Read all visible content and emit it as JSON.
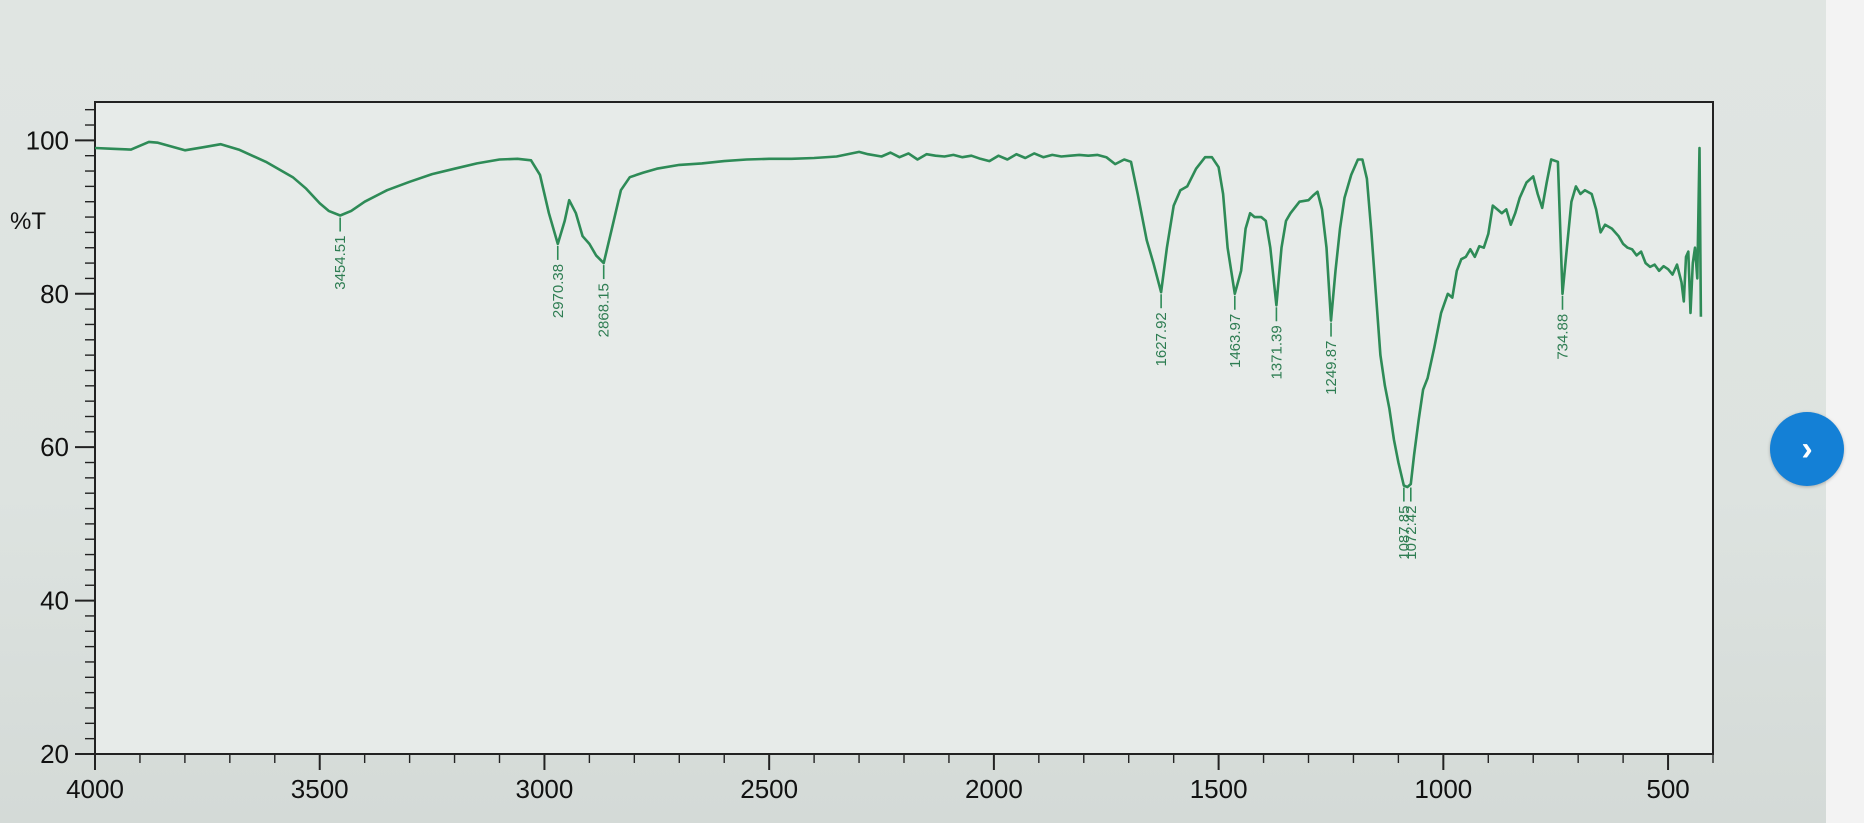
{
  "chart_data": {
    "type": "line",
    "title": "",
    "xlabel": "",
    "ylabel": "%T",
    "xlim": [
      4000,
      400
    ],
    "ylim": [
      20,
      105
    ],
    "x_ticks": [
      4000,
      3500,
      3000,
      2500,
      2000,
      1500,
      1000,
      500
    ],
    "y_ticks": [
      20,
      40,
      60,
      80,
      100
    ],
    "grid": false,
    "line_color": "#2e8b57",
    "series": [
      {
        "points": [
          [
            4000,
            99
          ],
          [
            3960,
            98.9
          ],
          [
            3920,
            98.8
          ],
          [
            3880,
            99.8
          ],
          [
            3860,
            99.7
          ],
          [
            3800,
            98.7
          ],
          [
            3760,
            99.1
          ],
          [
            3720,
            99.5
          ],
          [
            3680,
            98.8
          ],
          [
            3620,
            97.2
          ],
          [
            3560,
            95.2
          ],
          [
            3530,
            93.7
          ],
          [
            3500,
            91.8
          ],
          [
            3480,
            90.8
          ],
          [
            3454.51,
            90.2
          ],
          [
            3430,
            90.8
          ],
          [
            3400,
            92
          ],
          [
            3350,
            93.5
          ],
          [
            3300,
            94.6
          ],
          [
            3250,
            95.6
          ],
          [
            3200,
            96.3
          ],
          [
            3150,
            97.0
          ],
          [
            3100,
            97.5
          ],
          [
            3060,
            97.6
          ],
          [
            3030,
            97.4
          ],
          [
            3010,
            95.5
          ],
          [
            2990,
            90.5
          ],
          [
            2970.38,
            86.5
          ],
          [
            2955,
            89.5
          ],
          [
            2945,
            92.2
          ],
          [
            2930,
            90.5
          ],
          [
            2915,
            87.5
          ],
          [
            2900,
            86.5
          ],
          [
            2885,
            85
          ],
          [
            2868.15,
            84.0
          ],
          [
            2850,
            88.5
          ],
          [
            2830,
            93.5
          ],
          [
            2810,
            95.2
          ],
          [
            2780,
            95.8
          ],
          [
            2750,
            96.3
          ],
          [
            2700,
            96.8
          ],
          [
            2650,
            97.0
          ],
          [
            2600,
            97.3
          ],
          [
            2550,
            97.5
          ],
          [
            2500,
            97.6
          ],
          [
            2450,
            97.6
          ],
          [
            2400,
            97.7
          ],
          [
            2350,
            97.9
          ],
          [
            2300,
            98.5
          ],
          [
            2280,
            98.2
          ],
          [
            2250,
            97.9
          ],
          [
            2230,
            98.4
          ],
          [
            2210,
            97.8
          ],
          [
            2190,
            98.3
          ],
          [
            2170,
            97.5
          ],
          [
            2150,
            98.2
          ],
          [
            2130,
            98.0
          ],
          [
            2110,
            97.9
          ],
          [
            2090,
            98.1
          ],
          [
            2070,
            97.8
          ],
          [
            2050,
            98.0
          ],
          [
            2030,
            97.6
          ],
          [
            2010,
            97.3
          ],
          [
            1990,
            98.0
          ],
          [
            1970,
            97.5
          ],
          [
            1950,
            98.2
          ],
          [
            1930,
            97.7
          ],
          [
            1910,
            98.3
          ],
          [
            1890,
            97.8
          ],
          [
            1870,
            98.1
          ],
          [
            1850,
            97.9
          ],
          [
            1830,
            98.0
          ],
          [
            1810,
            98.1
          ],
          [
            1790,
            98.0
          ],
          [
            1770,
            98.1
          ],
          [
            1750,
            97.8
          ],
          [
            1730,
            96.9
          ],
          [
            1710,
            97.5
          ],
          [
            1695,
            97.2
          ],
          [
            1680,
            93
          ],
          [
            1660,
            87
          ],
          [
            1645,
            84
          ],
          [
            1627.92,
            80.2
          ],
          [
            1615,
            86
          ],
          [
            1600,
            91.5
          ],
          [
            1585,
            93.5
          ],
          [
            1570,
            94.0
          ],
          [
            1550,
            96.3
          ],
          [
            1530,
            97.8
          ],
          [
            1515,
            97.8
          ],
          [
            1500,
            96.5
          ],
          [
            1490,
            93
          ],
          [
            1480,
            86
          ],
          [
            1463.97,
            80.0
          ],
          [
            1450,
            83
          ],
          [
            1440,
            88.5
          ],
          [
            1430,
            90.5
          ],
          [
            1420,
            90.0
          ],
          [
            1405,
            90.0
          ],
          [
            1395,
            89.5
          ],
          [
            1385,
            86
          ],
          [
            1371.39,
            78.5
          ],
          [
            1360,
            86
          ],
          [
            1350,
            89.5
          ],
          [
            1340,
            90.5
          ],
          [
            1320,
            92.0
          ],
          [
            1300,
            92.2
          ],
          [
            1290,
            92.8
          ],
          [
            1280,
            93.3
          ],
          [
            1270,
            91.0
          ],
          [
            1260,
            86
          ],
          [
            1249.87,
            76.5
          ],
          [
            1240,
            83
          ],
          [
            1230,
            88.5
          ],
          [
            1220,
            92.5
          ],
          [
            1205,
            95.5
          ],
          [
            1190,
            97.5
          ],
          [
            1180,
            97.5
          ],
          [
            1170,
            95
          ],
          [
            1160,
            88
          ],
          [
            1150,
            80
          ],
          [
            1140,
            72
          ],
          [
            1130,
            68
          ],
          [
            1120,
            65
          ],
          [
            1110,
            61
          ],
          [
            1100,
            58
          ],
          [
            1087.85,
            55.0
          ],
          [
            1080,
            54.8
          ],
          [
            1072.42,
            55.2
          ],
          [
            1065,
            59
          ],
          [
            1055,
            63.5
          ],
          [
            1045,
            67.5
          ],
          [
            1035,
            69
          ],
          [
            1020,
            73
          ],
          [
            1005,
            77.5
          ],
          [
            990,
            80.0
          ],
          [
            980,
            79.5
          ],
          [
            970,
            83
          ],
          [
            960,
            84.5
          ],
          [
            950,
            84.8
          ],
          [
            940,
            85.8
          ],
          [
            930,
            84.8
          ],
          [
            920,
            86.2
          ],
          [
            910,
            86.0
          ],
          [
            900,
            87.8
          ],
          [
            890,
            91.5
          ],
          [
            880,
            91.0
          ],
          [
            870,
            90.5
          ],
          [
            860,
            91.0
          ],
          [
            850,
            89.0
          ],
          [
            840,
            90.5
          ],
          [
            830,
            92.5
          ],
          [
            815,
            94.5
          ],
          [
            800,
            95.3
          ],
          [
            790,
            93.0
          ],
          [
            780,
            91.2
          ],
          [
            770,
            94.5
          ],
          [
            760,
            97.5
          ],
          [
            745,
            97.2
          ],
          [
            734.88,
            80.0
          ],
          [
            725,
            86
          ],
          [
            715,
            92.0
          ],
          [
            705,
            94.0
          ],
          [
            695,
            93.0
          ],
          [
            685,
            93.5
          ],
          [
            670,
            93.0
          ],
          [
            660,
            91.0
          ],
          [
            650,
            88.0
          ],
          [
            640,
            89.0
          ],
          [
            625,
            88.5
          ],
          [
            610,
            87.5
          ],
          [
            600,
            86.5
          ],
          [
            590,
            86.0
          ],
          [
            580,
            85.8
          ],
          [
            570,
            85.0
          ],
          [
            560,
            85.5
          ],
          [
            550,
            84.0
          ],
          [
            540,
            83.5
          ],
          [
            530,
            83.8
          ],
          [
            520,
            83.0
          ],
          [
            510,
            83.6
          ],
          [
            500,
            83.2
          ],
          [
            490,
            82.5
          ],
          [
            480,
            83.8
          ],
          [
            470,
            81.5
          ],
          [
            465,
            79.0
          ],
          [
            460,
            84.8
          ],
          [
            455,
            85.5
          ],
          [
            450,
            77.5
          ],
          [
            445,
            84.0
          ],
          [
            440,
            86.0
          ],
          [
            435,
            82.0
          ],
          [
            430,
            99.0
          ],
          [
            427,
            77.0
          ]
        ]
      }
    ],
    "peak_labels": [
      {
        "wavenumber": 3454.51,
        "text": "3454.51",
        "transmittance": 90.2
      },
      {
        "wavenumber": 2970.38,
        "text": "2970.38",
        "transmittance": 86.5
      },
      {
        "wavenumber": 2868.15,
        "text": "2868.15",
        "transmittance": 84.0
      },
      {
        "wavenumber": 1627.92,
        "text": "1627.92",
        "transmittance": 80.2
      },
      {
        "wavenumber": 1463.97,
        "text": "1463.97",
        "transmittance": 80.0
      },
      {
        "wavenumber": 1371.39,
        "text": "1371.39",
        "transmittance": 78.5
      },
      {
        "wavenumber": 1249.87,
        "text": "1249.87",
        "transmittance": 76.5
      },
      {
        "wavenumber": 1087.85,
        "text": "1087.85",
        "transmittance": 55.0
      },
      {
        "wavenumber": 1072.42,
        "text": "1072.42",
        "transmittance": 55.0
      },
      {
        "wavenumber": 734.88,
        "text": "734.88",
        "transmittance": 80.0
      }
    ]
  },
  "nav": {
    "next_icon": "chevron-right-icon",
    "next_glyph": "›",
    "accent_color": "#1480d6"
  }
}
